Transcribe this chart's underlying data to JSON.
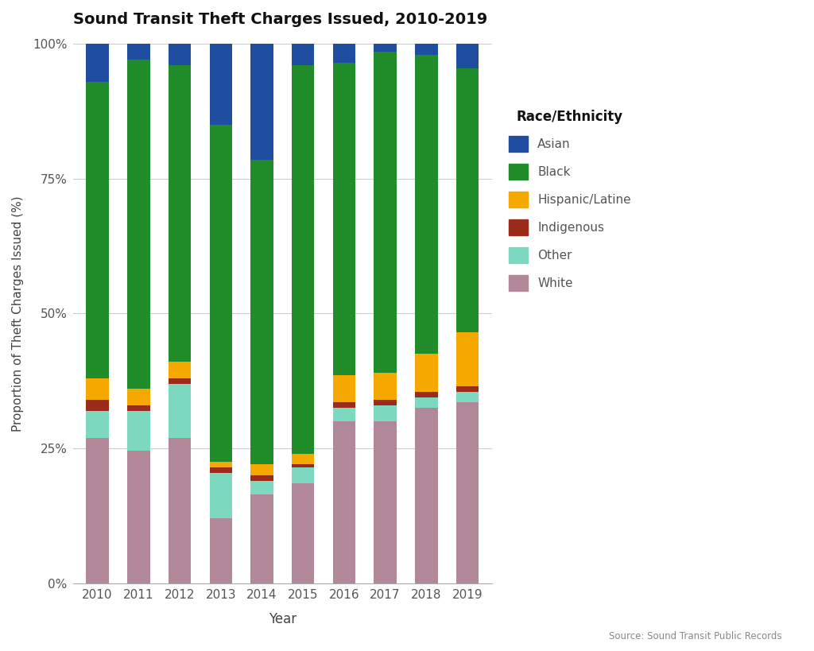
{
  "title": "Sound Transit Theft Charges Issued, 2010-2019",
  "xlabel": "Year",
  "ylabel": "Proportion of Theft Charges Issued (%)",
  "source": "Source: Sound Transit Public Records",
  "years": [
    2010,
    2011,
    2012,
    2013,
    2014,
    2015,
    2016,
    2017,
    2018,
    2019
  ],
  "categories": [
    "White",
    "Other",
    "Indigenous",
    "Hispanic/Latine",
    "Black",
    "Asian"
  ],
  "colors": {
    "White": "#b08898",
    "Other": "#7dd8c0",
    "Indigenous": "#9b2b1a",
    "Hispanic/Latine": "#f5a800",
    "Black": "#218c2a",
    "Asian": "#1f4ea1"
  },
  "data": {
    "White": [
      0.27,
      0.245,
      0.27,
      0.12,
      0.165,
      0.185,
      0.3,
      0.3,
      0.325,
      0.335
    ],
    "Other": [
      0.05,
      0.075,
      0.1,
      0.085,
      0.025,
      0.03,
      0.025,
      0.03,
      0.02,
      0.02
    ],
    "Indigenous": [
      0.02,
      0.01,
      0.01,
      0.01,
      0.01,
      0.005,
      0.01,
      0.01,
      0.01,
      0.01
    ],
    "Hispanic/Latine": [
      0.04,
      0.03,
      0.03,
      0.01,
      0.02,
      0.02,
      0.05,
      0.05,
      0.07,
      0.1
    ],
    "Black": [
      0.55,
      0.61,
      0.55,
      0.625,
      0.565,
      0.72,
      0.58,
      0.595,
      0.555,
      0.49
    ],
    "Asian": [
      0.07,
      0.03,
      0.04,
      0.15,
      0.215,
      0.04,
      0.035,
      0.015,
      0.02,
      0.045
    ]
  },
  "background_color": "#ffffff",
  "legend_title": "Race/Ethnicity",
  "legend_labels": [
    "Asian",
    "Black",
    "Hispanic/Latine",
    "Indigenous",
    "Other",
    "White"
  ],
  "legend_colors": [
    "#1f4ea1",
    "#218c2a",
    "#f5a800",
    "#9b2b1a",
    "#7dd8c0",
    "#b08898"
  ]
}
